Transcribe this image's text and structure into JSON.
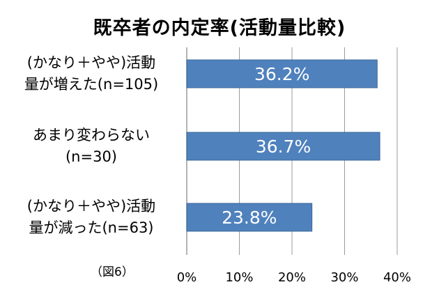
{
  "chart_data": {
    "type": "bar",
    "orientation": "horizontal",
    "title": "既卒者の内定率(活動量比較)",
    "categories": [
      [
        "(かなり＋やや)活動",
        "量が増えた(n=105)"
      ],
      [
        "あまり変わらない",
        "(n=30)"
      ],
      [
        "(かなり＋やや)活動",
        "量が減った(n=63)"
      ]
    ],
    "values": [
      36.2,
      36.7,
      23.8
    ],
    "data_labels": [
      "36.2%",
      "36.7%",
      "23.8%"
    ],
    "xlim": [
      0,
      40
    ],
    "x_ticks": [
      "0%",
      "10%",
      "20%",
      "30%",
      "40%"
    ],
    "grid": "vertical",
    "bar_color": "#4f81bd",
    "bar_border_color": "#3a6696",
    "grid_color": "#9a9a9a",
    "xlabel": "",
    "ylabel": ""
  },
  "note": "（図6）"
}
